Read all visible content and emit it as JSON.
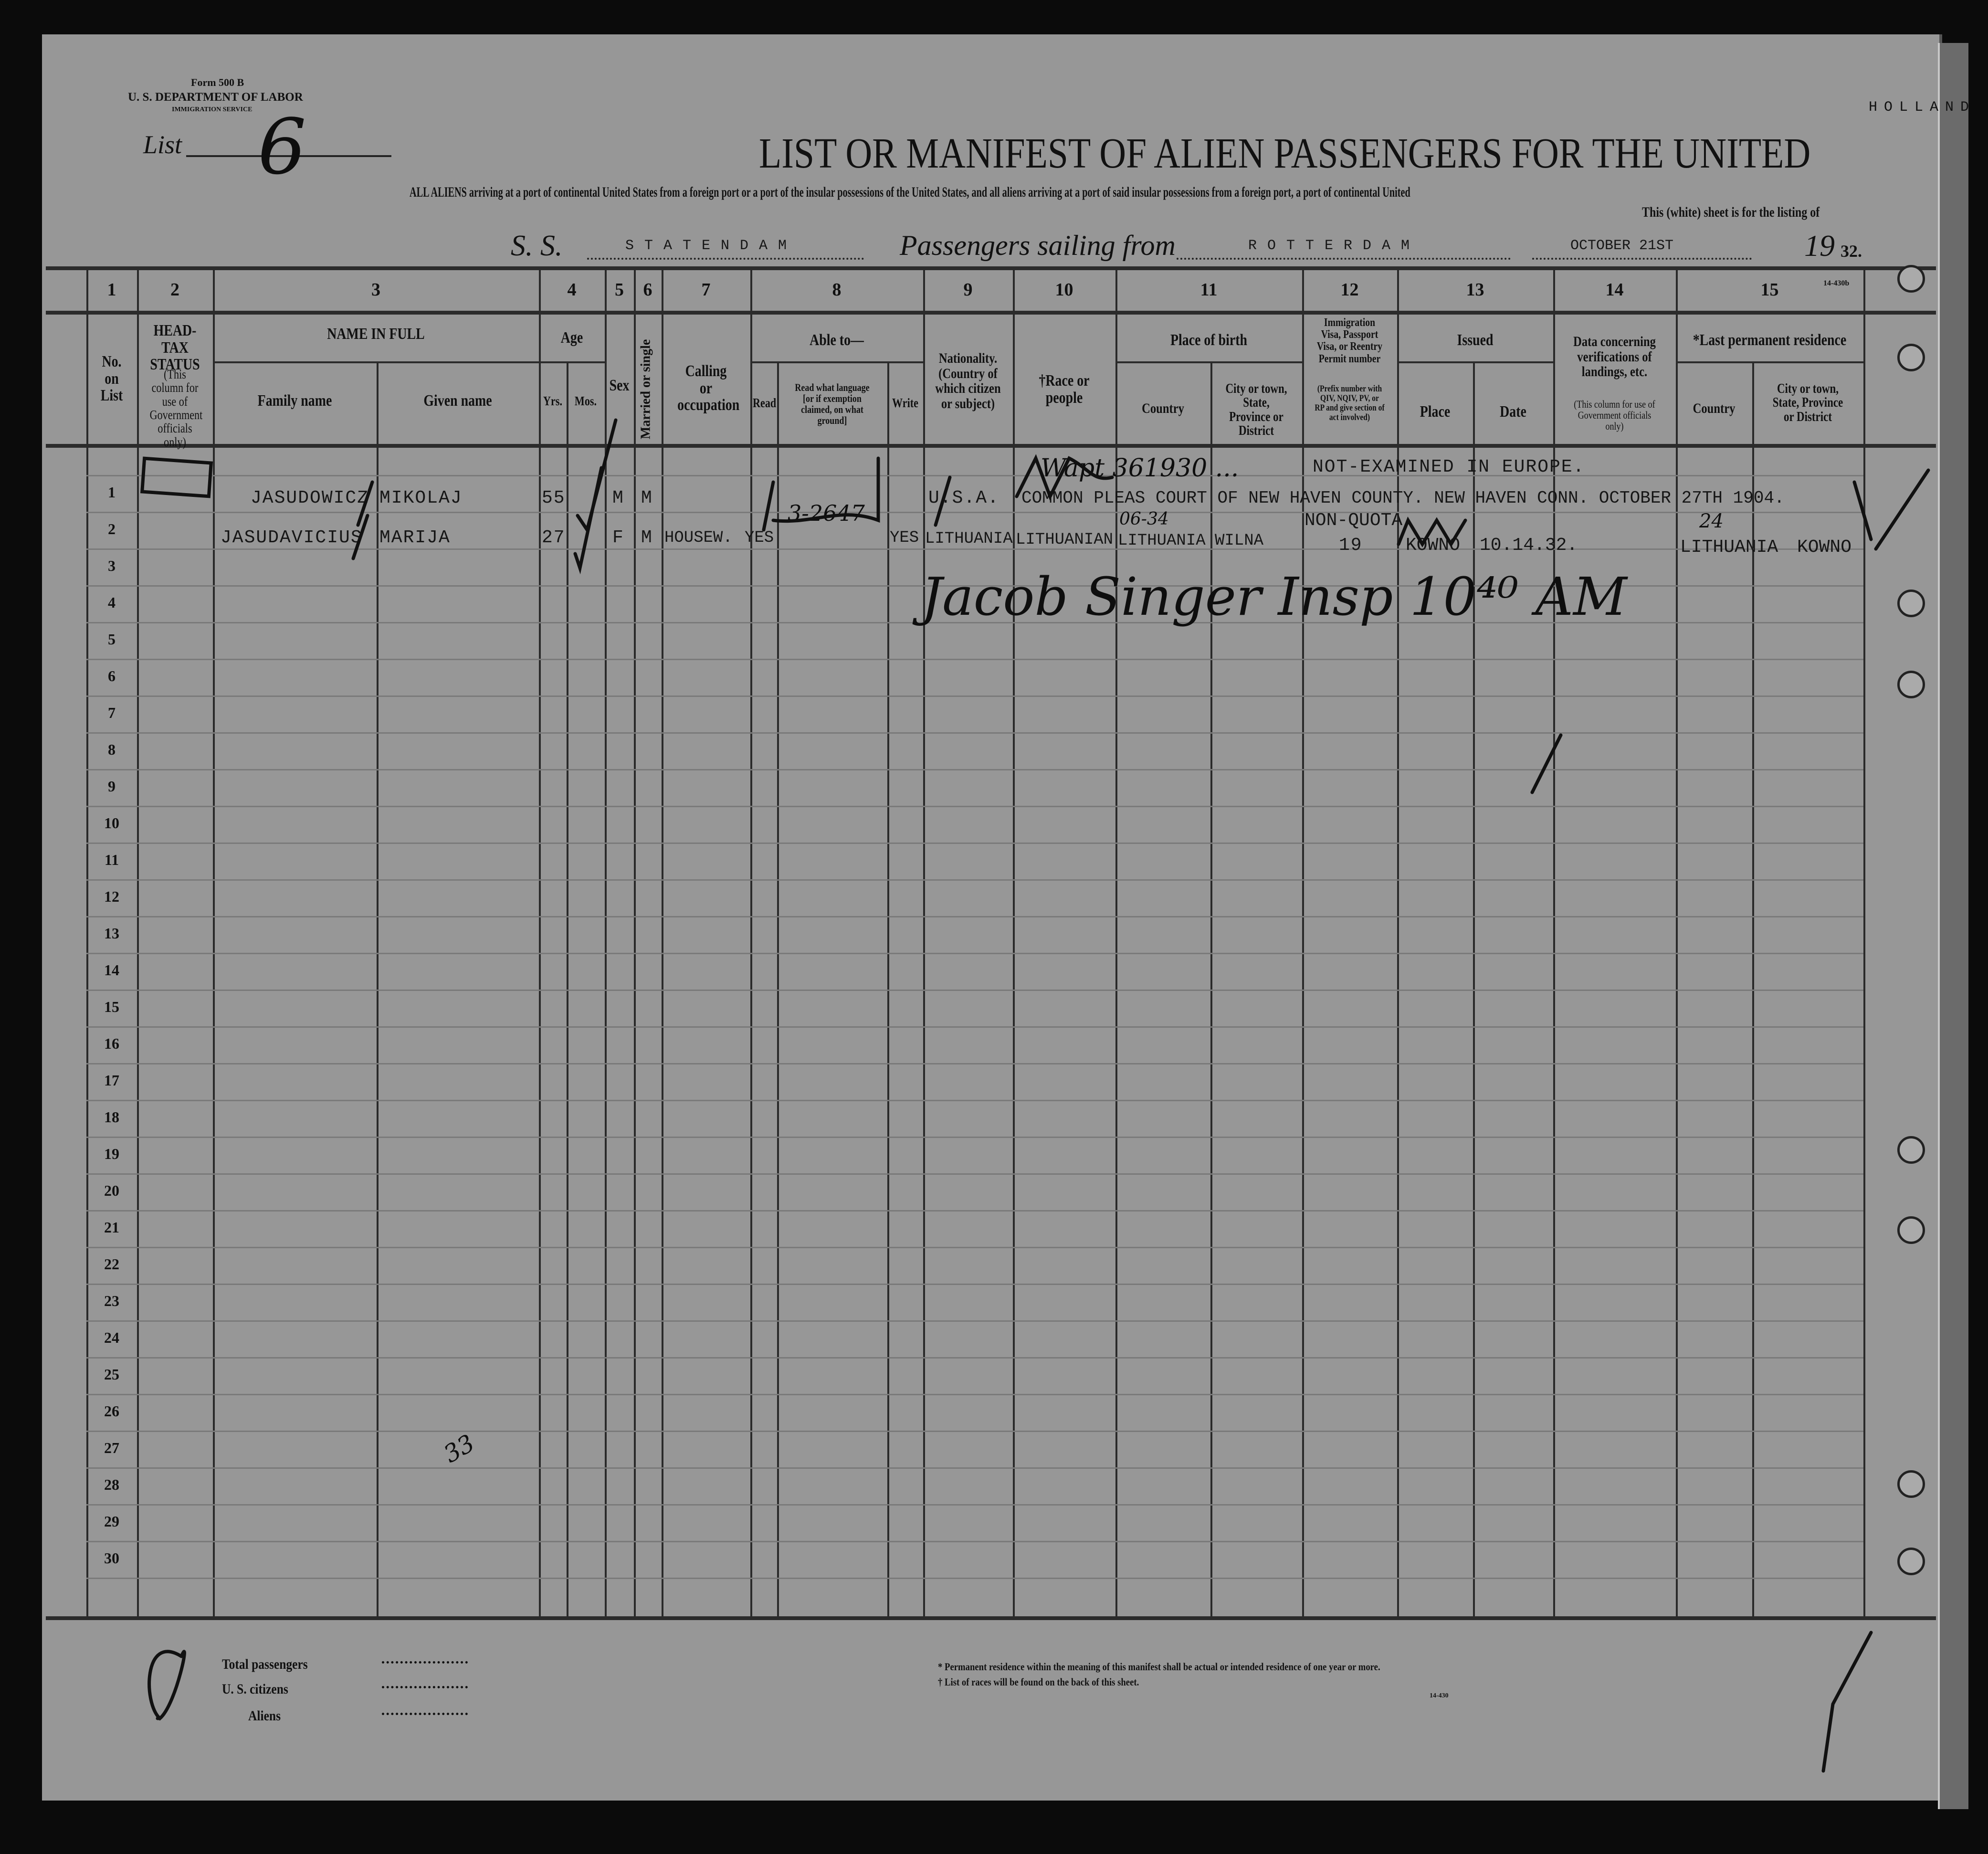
{
  "form": {
    "form_number": "Form 500 B",
    "department": "U. S. DEPARTMENT OF LABOR",
    "service": "IMMIGRATION SERVICE",
    "list_label": "List",
    "list_number": "6",
    "country_stamp": "HOLLAND",
    "form_code_top": "14-430b",
    "form_code_bottom": "14-430"
  },
  "title": "LIST OR MANIFEST OF ALIEN PASSENGERS FOR THE UNITED",
  "subtitle": "ALL ALIENS arriving at a port of continental United States from a foreign port or a port of the insular possessions of the United States, and all aliens arriving at a port of said insular possessions from a foreign port, a port of continental United",
  "subtitle2": "This (white) sheet is for the listing of",
  "voyage": {
    "ss_label": "S. S.",
    "ship": "S T A T E N D A M",
    "sailing_label": "Passengers sailing from",
    "port": "R O T T E R D A M",
    "date": "OCTOBER 21ST",
    "year_prefix": "19",
    "year_suffix": "32."
  },
  "columns": {
    "numbers": [
      "1",
      "2",
      "3",
      "4",
      "5",
      "6",
      "7",
      "8",
      "9",
      "10",
      "11",
      "12",
      "13",
      "14",
      "15"
    ],
    "no_on_list": "No. on List",
    "head_tax": "HEAD-TAX STATUS",
    "head_tax_note": "(This column for use of Government officials only)",
    "name_in_full": "NAME IN FULL",
    "family_name": "Family name",
    "given_name": "Given name",
    "age": "Age",
    "yrs": "Yrs.",
    "mos": "Mos.",
    "sex": "Sex",
    "married": "Married or single",
    "calling": "Calling or occupation",
    "able_to": "Able to—",
    "read": "Read",
    "read_language": "Read what language [or if exemption claimed, on what ground]",
    "write": "Write",
    "nationality": "Nationality. (Country of which citizen or subject)",
    "race": "†Race or people",
    "place_of_birth": "Place of birth",
    "country": "Country",
    "city": "City or town, State, Province or District",
    "visa": "Immigration Visa, Passport Visa, or Reentry Permit number",
    "visa_note": "(Prefix number with QIV, NQIV, PV, or RP and give section of act involved)",
    "issued": "Issued",
    "place": "Place",
    "date": "Date",
    "data_concerning": "Data concerning verifications of landings, etc.",
    "data_note": "(This column for use of Government officials only)",
    "last_residence": "*Last permanent residence",
    "country2": "Country",
    "city2": "City or town, State, Province or District"
  },
  "row_numbers": [
    "1",
    "2",
    "3",
    "4",
    "5",
    "6",
    "7",
    "8",
    "9",
    "10",
    "11",
    "12",
    "13",
    "14",
    "15",
    "16",
    "17",
    "18",
    "19",
    "20",
    "21",
    "22",
    "23",
    "24",
    "25",
    "26",
    "27",
    "28",
    "29",
    "30"
  ],
  "passengers": [
    {
      "family_name": "JASUDOWICZ",
      "given_name": "MIKOLAJ",
      "age_yrs": "55",
      "sex": "M",
      "married": "M",
      "nationality": "U.S.A.",
      "naturalization": "COMMON PLEAS COURT OF NEW HAVEN COUNTY. NEW HAVEN CONN. OCTOBER 27TH 1904.",
      "visa_note": "NOT-EXAMINED IN EUROPE."
    },
    {
      "family_name": "JASUDAVICIUS",
      "given_name": "MARIJA",
      "age_yrs": "27",
      "sex": "F",
      "married": "M",
      "calling": "HOUSEW.",
      "read": "YES",
      "write": "YES",
      "nationality": "LITHUANIA",
      "race": "LITHUANIAN",
      "birth_country": "LITHUANIA",
      "birth_city": "WILNA",
      "visa_type": "NON-QUOTA",
      "visa_number": "19",
      "issued_place": "KOWNO",
      "issued_date": "10.14.32.",
      "residence_country": "LITHUANIA",
      "residence_city": "KOWNO"
    }
  ],
  "handwritten": {
    "inspector": "Jacob Singer Insp 10⁴⁰ AM",
    "code1": "06-34",
    "code2": "3-2647",
    "code3": "24",
    "code4": "33",
    "note": "Wapt 361930 ..."
  },
  "footer": {
    "total_passengers": "Total passengers",
    "us_citizens": "U. S. citizens",
    "aliens": "Aliens",
    "footnote1": "* Permanent residence within the meaning of this manifest shall be actual or intended residence of one year or more.",
    "footnote2": "† List of races will be found on the back of this sheet."
  },
  "colors": {
    "paper": "#979797",
    "ink": "#111111",
    "background": "#0b0b0b"
  }
}
